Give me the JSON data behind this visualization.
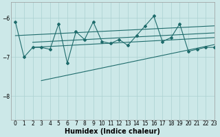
{
  "xlabel": "Humidex (Indice chaleur)",
  "xlim": [
    -0.5,
    23
  ],
  "ylim": [
    -8.6,
    -5.6
  ],
  "yticks": [
    -8,
    -7,
    -6
  ],
  "xticks": [
    0,
    1,
    2,
    3,
    4,
    5,
    6,
    7,
    8,
    9,
    10,
    11,
    12,
    13,
    14,
    15,
    16,
    17,
    18,
    19,
    20,
    21,
    22,
    23
  ],
  "bg_color": "#cce8e8",
  "grid_color": "#aad0d0",
  "line_color": "#1e6b6b",
  "data_x": [
    0,
    1,
    2,
    3,
    4,
    5,
    6,
    7,
    8,
    9,
    10,
    11,
    12,
    13,
    14,
    15,
    16,
    17,
    18,
    19,
    20,
    21,
    22,
    23
  ],
  "data_y": [
    -6.1,
    -7.0,
    -6.75,
    -6.75,
    -6.8,
    -6.15,
    -7.15,
    -6.35,
    -6.55,
    -6.1,
    -6.6,
    -6.65,
    -6.55,
    -6.7,
    -6.45,
    -6.2,
    -5.95,
    -6.6,
    -6.5,
    -6.15,
    -6.85,
    -6.8,
    -6.75,
    -6.75
  ],
  "line1_x": [
    0,
    23
  ],
  "line1_y": [
    -6.45,
    -6.2
  ],
  "line2_x": [
    2,
    23
  ],
  "line2_y": [
    -6.62,
    -6.38
  ],
  "line3_x": [
    2,
    23
  ],
  "line3_y": [
    -6.75,
    -6.5
  ],
  "line4_x": [
    3,
    23
  ],
  "line4_y": [
    -7.6,
    -6.68
  ]
}
